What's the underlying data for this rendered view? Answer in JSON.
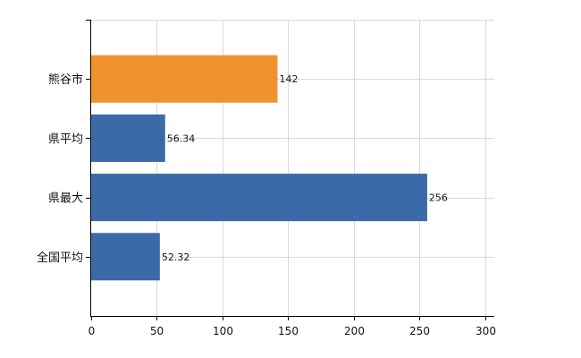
{
  "chart_data": {
    "type": "bar",
    "orientation": "horizontal",
    "categories": [
      "熊谷市",
      "県平均",
      "県最大",
      "全国平均"
    ],
    "values": [
      142,
      56.34,
      256,
      52.32
    ],
    "value_labels": [
      "142",
      "56.34",
      "256",
      "52.32"
    ],
    "bar_colors": [
      "#F0922E",
      "#3A6AA8",
      "#3A6AA8",
      "#3A6AA8"
    ],
    "xlim": [
      0,
      300
    ],
    "x_ticks": [
      0,
      50,
      100,
      150,
      200,
      250,
      300
    ],
    "grid": true,
    "legend": "none"
  },
  "colors": {
    "highlight": "#F0922E",
    "primary": "#3A6AA8",
    "grid": "#d9d9d9",
    "axis": "#000000"
  }
}
